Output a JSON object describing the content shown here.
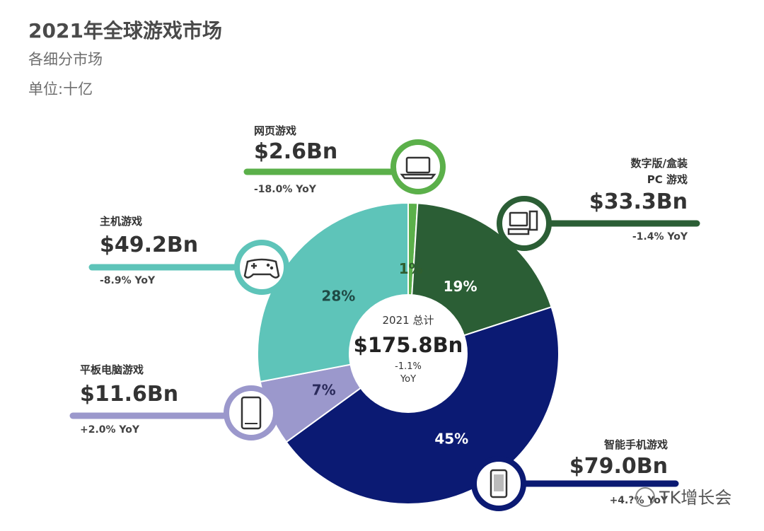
{
  "title": "2021年全球游戏市场",
  "subtitle": "各细分市场",
  "unit": "单位:十亿",
  "watermark": "TK增长会",
  "chart_data": {
    "type": "pie",
    "donut": true,
    "title": "2021年全球游戏市场",
    "center": {
      "label": "2021 总计",
      "value": "$175.8Bn",
      "yoy": "-1.1%",
      "yoy_suffix": "YoY",
      "total": 175.8
    },
    "segments": [
      {
        "name": "网页游戏",
        "value": 2.6,
        "value_label": "$2.6Bn",
        "percent": 1,
        "percent_label": "1%",
        "yoy": "-18.0% YoY",
        "color": "#5bb04a",
        "label_color": "#2f5e2f",
        "icon": "laptop-icon"
      },
      {
        "name": "数字版/盒装\nPC 游戏",
        "name_lines": [
          "数字版/盒装",
          "PC 游戏"
        ],
        "value": 33.3,
        "value_label": "$33.3Bn",
        "percent": 19,
        "percent_label": "19%",
        "yoy": "-1.4% YoY",
        "color": "#2b5e35",
        "label_color": "#ffffff",
        "icon": "desktop-pc-icon"
      },
      {
        "name": "智能手机游戏",
        "value": 79.0,
        "value_label": "$79.0Bn",
        "percent": 45,
        "percent_label": "45%",
        "yoy": "+4.?% YoY",
        "color": "#0b1a73",
        "label_color": "#ffffff",
        "icon": "smartphone-icon"
      },
      {
        "name": "平板电脑游戏",
        "value": 11.6,
        "value_label": "$11.6Bn",
        "percent": 7,
        "percent_label": "7%",
        "yoy": "+2.0% YoY",
        "color": "#9b98cc",
        "label_color": "#2a2a5a",
        "icon": "tablet-icon"
      },
      {
        "name": "主机游戏",
        "value": 49.2,
        "value_label": "$49.2Bn",
        "percent": 28,
        "percent_label": "28%",
        "yoy": "-8.9% YoY",
        "color": "#5ec4b9",
        "label_color": "#1f4a45",
        "icon": "gamepad-icon"
      }
    ]
  }
}
